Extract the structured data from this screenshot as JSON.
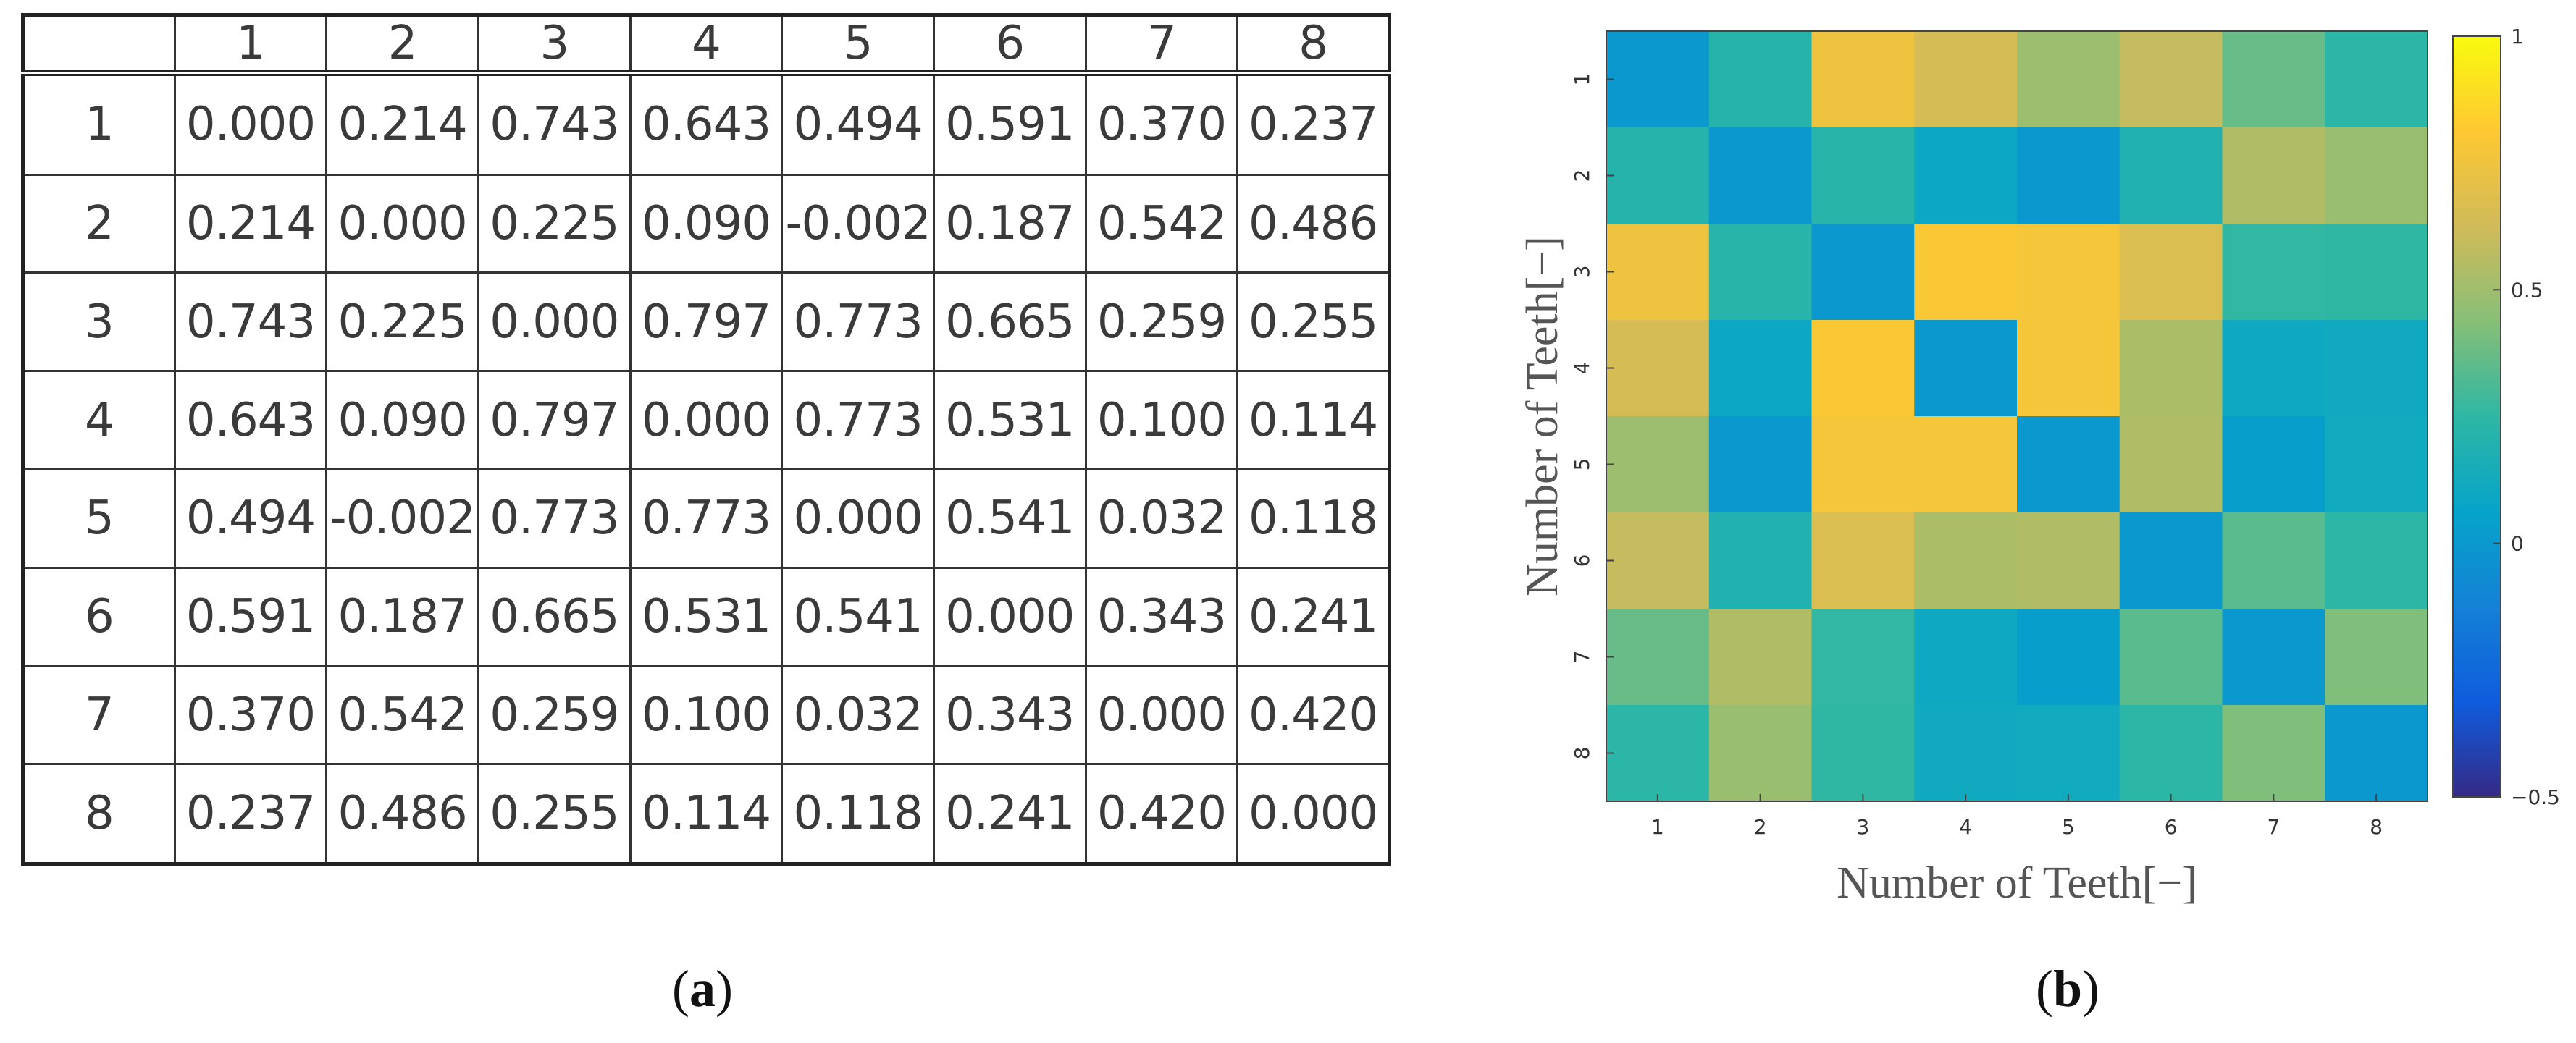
{
  "table": {
    "corner": "",
    "header": [
      "1",
      "2",
      "3",
      "4",
      "5",
      "6",
      "7",
      "8"
    ],
    "rows": [
      {
        "label": "1",
        "cells": [
          "0.000",
          "0.214",
          "0.743",
          "0.643",
          "0.494",
          "0.591",
          "0.370",
          "0.237"
        ]
      },
      {
        "label": "2",
        "cells": [
          "0.214",
          "0.000",
          "0.225",
          "0.090",
          "-0.002",
          "0.187",
          "0.542",
          "0.486"
        ]
      },
      {
        "label": "3",
        "cells": [
          "0.743",
          "0.225",
          "0.000",
          "0.797",
          "0.773",
          "0.665",
          "0.259",
          "0.255"
        ]
      },
      {
        "label": "4",
        "cells": [
          "0.643",
          "0.090",
          "0.797",
          "0.000",
          "0.773",
          "0.531",
          "0.100",
          "0.114"
        ]
      },
      {
        "label": "5",
        "cells": [
          "0.494",
          "-0.002",
          "0.773",
          "0.773",
          "0.000",
          "0.541",
          "0.032",
          "0.118"
        ]
      },
      {
        "label": "6",
        "cells": [
          "0.591",
          "0.187",
          "0.665",
          "0.531",
          "0.541",
          "0.000",
          "0.343",
          "0.241"
        ]
      },
      {
        "label": "7",
        "cells": [
          "0.370",
          "0.542",
          "0.259",
          "0.100",
          "0.032",
          "0.343",
          "0.000",
          "0.420"
        ]
      },
      {
        "label": "8",
        "cells": [
          "0.237",
          "0.486",
          "0.255",
          "0.114",
          "0.118",
          "0.241",
          "0.420",
          "0.000"
        ]
      }
    ]
  },
  "captions": {
    "a_open": "(",
    "a_letter": "a",
    "a_close": ")",
    "b_open": "(",
    "b_letter": "b",
    "b_close": ")"
  },
  "chart_data": {
    "type": "heatmap",
    "title": "",
    "xlabel": "Number of Teeth[−]",
    "ylabel": "Number of Teeth[−]",
    "x": [
      "1",
      "2",
      "3",
      "4",
      "5",
      "6",
      "7",
      "8"
    ],
    "y": [
      "1",
      "2",
      "3",
      "4",
      "5",
      "6",
      "7",
      "8"
    ],
    "values": [
      [
        0.0,
        0.214,
        0.743,
        0.643,
        0.494,
        0.591,
        0.37,
        0.237
      ],
      [
        0.214,
        0.0,
        0.225,
        0.09,
        -0.002,
        0.187,
        0.542,
        0.486
      ],
      [
        0.743,
        0.225,
        0.0,
        0.797,
        0.773,
        0.665,
        0.259,
        0.255
      ],
      [
        0.643,
        0.09,
        0.797,
        0.0,
        0.773,
        0.531,
        0.1,
        0.114
      ],
      [
        0.494,
        -0.002,
        0.773,
        0.773,
        0.0,
        0.541,
        0.032,
        0.118
      ],
      [
        0.591,
        0.187,
        0.665,
        0.531,
        0.541,
        0.0,
        0.343,
        0.241
      ],
      [
        0.37,
        0.542,
        0.259,
        0.1,
        0.032,
        0.343,
        0.0,
        0.42
      ],
      [
        0.237,
        0.486,
        0.255,
        0.114,
        0.118,
        0.241,
        0.42,
        0.0
      ]
    ],
    "colorbar": {
      "range": [
        -0.5,
        1
      ],
      "ticks": [
        1,
        0.5,
        0,
        -0.5
      ],
      "tick_labels": [
        "1",
        "0.5",
        "0",
        "−0.5"
      ],
      "colormap": "parula",
      "colormap_stops": [
        "#352a87",
        "#0f5cdd",
        "#1481d6",
        "#06a4ca",
        "#2eb7a4",
        "#87bf77",
        "#d1bb59",
        "#fec832",
        "#f9fb0e"
      ]
    }
  }
}
